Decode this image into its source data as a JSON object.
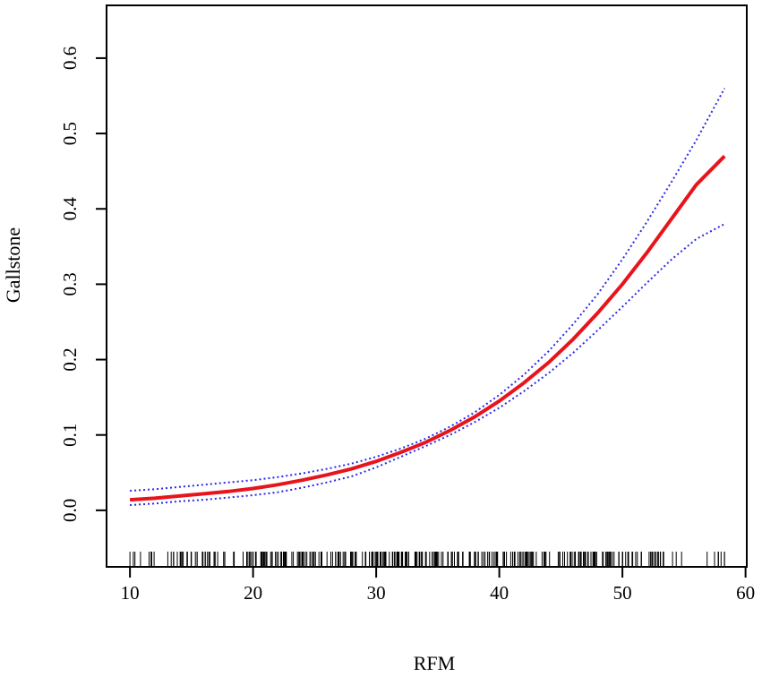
{
  "chart_data": {
    "type": "line",
    "xlabel": "RFM",
    "ylabel": "Gallstone",
    "xlim": [
      8.1,
      60.1
    ],
    "ylim": [
      -0.075,
      0.67
    ],
    "x_ticks": [
      10,
      20,
      30,
      40,
      50,
      60
    ],
    "y_ticks": [
      0.0,
      0.1,
      0.2,
      0.3,
      0.4,
      0.5,
      0.6
    ],
    "x_tick_labels": [
      "10",
      "20",
      "30",
      "40",
      "50",
      "60"
    ],
    "y_tick_labels": [
      "0.0",
      "0.1",
      "0.2",
      "0.3",
      "0.4",
      "0.5",
      "0.6"
    ],
    "grid": false,
    "legend": "none",
    "rug": {
      "range": [
        10,
        58.3
      ],
      "density": "sparse below ~13 and above ~51, dense between 20 and 50"
    },
    "series": [
      {
        "color": "#e8141c",
        "style": "solid",
        "x": [
          10,
          12,
          14,
          16,
          18,
          20,
          22,
          24,
          26,
          28,
          30,
          32,
          34,
          36,
          38,
          40,
          42,
          44,
          46,
          48,
          50,
          52,
          54,
          56,
          58.3
        ],
        "y": [
          0.014,
          0.016,
          0.019,
          0.022,
          0.025,
          0.029,
          0.034,
          0.04,
          0.047,
          0.055,
          0.065,
          0.077,
          0.09,
          0.106,
          0.124,
          0.145,
          0.169,
          0.196,
          0.227,
          0.262,
          0.3,
          0.342,
          0.387,
          0.432,
          0.47
        ]
      },
      {
        "color": "#2a2ae8",
        "style": "dotted",
        "x": [
          10,
          12,
          14,
          16,
          18,
          20,
          22,
          24,
          26,
          28,
          30,
          32,
          34,
          36,
          38,
          40,
          42,
          44,
          46,
          48,
          50,
          52,
          54,
          56,
          58.3
        ],
        "y": [
          0.026,
          0.028,
          0.031,
          0.034,
          0.037,
          0.04,
          0.044,
          0.049,
          0.055,
          0.062,
          0.071,
          0.082,
          0.095,
          0.111,
          0.13,
          0.153,
          0.18,
          0.211,
          0.247,
          0.287,
          0.333,
          0.383,
          0.436,
          0.491,
          0.56
        ]
      },
      {
        "color": "#2a2ae8",
        "style": "dotted",
        "x": [
          10,
          12,
          14,
          16,
          18,
          20,
          22,
          24,
          26,
          28,
          30,
          32,
          34,
          36,
          38,
          40,
          42,
          44,
          46,
          48,
          50,
          52,
          54,
          56,
          58.3
        ],
        "y": [
          0.007,
          0.009,
          0.012,
          0.014,
          0.017,
          0.02,
          0.024,
          0.03,
          0.037,
          0.045,
          0.057,
          0.071,
          0.085,
          0.1,
          0.117,
          0.136,
          0.158,
          0.182,
          0.209,
          0.239,
          0.27,
          0.302,
          0.333,
          0.36,
          0.38
        ]
      }
    ]
  }
}
